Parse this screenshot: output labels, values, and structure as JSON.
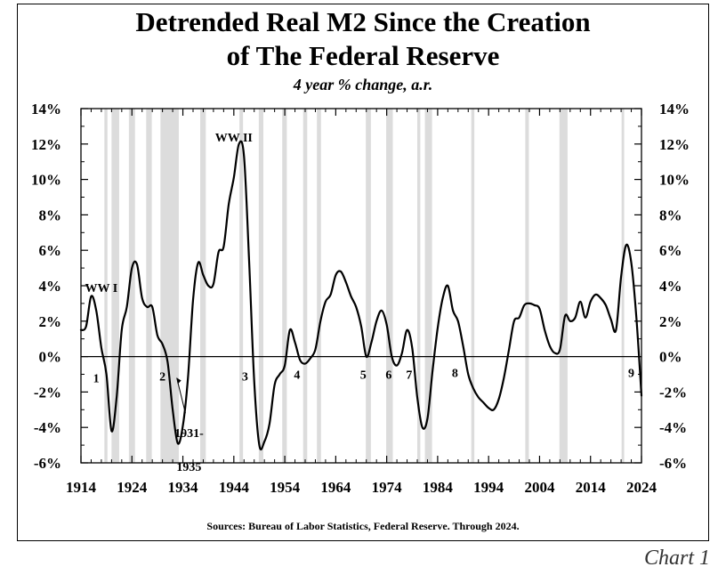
{
  "chart_data": {
    "type": "line",
    "title": "Detrended Real M2 Since the Creation of The Federal Reserve",
    "title_line1": "Detrended Real M2 Since the Creation",
    "title_line2": "of The Federal Reserve",
    "subtitle": "4 year % change, a.r.",
    "source": "Sources: Bureau of Labor Statistics, Federal Reserve.  Through 2024.",
    "caption": "Chart 1",
    "xlim": [
      1914,
      2024
    ],
    "ylim": [
      -6,
      14
    ],
    "x_ticks": [
      1914,
      1924,
      1934,
      1944,
      1954,
      1964,
      1974,
      1984,
      1994,
      2004,
      2014,
      2024
    ],
    "y_ticks": [
      -6,
      -4,
      -2,
      0,
      2,
      4,
      6,
      8,
      10,
      12,
      14
    ],
    "y_tick_labels": [
      "-6%",
      "-4%",
      "-2%",
      "0%",
      "2%",
      "4%",
      "6%",
      "8%",
      "10%",
      "12%",
      "14%"
    ],
    "grid": false,
    "recession_shading": [
      [
        1918.6,
        1919.2
      ],
      [
        1920.0,
        1921.5
      ],
      [
        1923.4,
        1924.6
      ],
      [
        1926.8,
        1927.9
      ],
      [
        1929.6,
        1933.2
      ],
      [
        1937.4,
        1938.5
      ],
      [
        1945.1,
        1945.8
      ],
      [
        1948.9,
        1949.8
      ],
      [
        1953.5,
        1954.4
      ],
      [
        1957.6,
        1958.4
      ],
      [
        1960.3,
        1961.1
      ],
      [
        1969.9,
        1970.9
      ],
      [
        1973.9,
        1975.2
      ],
      [
        1980.0,
        1980.6
      ],
      [
        1981.5,
        1982.9
      ],
      [
        1990.6,
        1991.2
      ],
      [
        2001.2,
        2001.9
      ],
      [
        2007.9,
        2009.5
      ],
      [
        2020.1,
        2020.6
      ]
    ],
    "series": [
      {
        "x": [
          1914,
          1915,
          1916,
          1917,
          1918,
          1919,
          1920,
          1921,
          1922,
          1923,
          1924,
          1925,
          1926,
          1927,
          1928,
          1929,
          1930,
          1931,
          1932,
          1933,
          1934,
          1935,
          1936,
          1937,
          1938,
          1939,
          1940,
          1941,
          1942,
          1943,
          1944,
          1945,
          1946,
          1947,
          1948,
          1949,
          1950,
          1951,
          1952,
          1953,
          1954,
          1955,
          1956,
          1957,
          1958,
          1959,
          1960,
          1961,
          1962,
          1963,
          1964,
          1965,
          1966,
          1967,
          1968,
          1969,
          1970,
          1971,
          1972,
          1973,
          1974,
          1975,
          1976,
          1977,
          1978,
          1979,
          1980,
          1981,
          1982,
          1983,
          1984,
          1985,
          1986,
          1987,
          1988,
          1989,
          1990,
          1991,
          1992,
          1993,
          1994,
          1995,
          1996,
          1997,
          1998,
          1999,
          2000,
          2001,
          2002,
          2003,
          2004,
          2005,
          2006,
          2007,
          2008,
          2009,
          2010,
          2011,
          2012,
          2013,
          2014,
          2015,
          2016,
          2017,
          2018,
          2019,
          2020,
          2021,
          2022,
          2023,
          2024
        ],
        "values": [
          1.5,
          1.7,
          3.4,
          2.6,
          0.5,
          -1.0,
          -4.2,
          -2.3,
          1.5,
          2.8,
          5.0,
          5.2,
          3.3,
          2.8,
          2.8,
          1.2,
          0.7,
          -0.3,
          -3.0,
          -4.9,
          -3.9,
          -1.2,
          3.2,
          5.3,
          4.6,
          4.0,
          4.1,
          5.9,
          6.2,
          8.6,
          10.1,
          12.0,
          11.3,
          5.4,
          -1.4,
          -5.0,
          -4.8,
          -3.8,
          -1.6,
          -1.0,
          -0.5,
          1.5,
          0.8,
          -0.2,
          -0.4,
          -0.1,
          0.4,
          2.0,
          3.1,
          3.5,
          4.6,
          4.8,
          4.2,
          3.4,
          2.8,
          1.7,
          0.0,
          0.8,
          2.0,
          2.6,
          1.8,
          0.0,
          -0.5,
          0.2,
          1.5,
          0.5,
          -2.3,
          -4.0,
          -3.5,
          -0.8,
          1.6,
          3.3,
          4.0,
          2.6,
          2.0,
          0.6,
          -1.0,
          -1.8,
          -2.3,
          -2.6,
          -2.9,
          -3.0,
          -2.4,
          -1.2,
          0.4,
          2.0,
          2.2,
          2.9,
          3.0,
          2.9,
          2.7,
          1.5,
          0.6,
          0.2,
          0.4,
          2.3,
          2.0,
          2.2,
          3.1,
          2.2,
          3.1,
          3.5,
          3.3,
          2.9,
          2.1,
          1.5,
          4.5,
          6.3,
          5.3,
          2.2,
          -2.2
        ]
      }
    ],
    "annotations": {
      "ww1": {
        "text": "WW I",
        "x": 1918.0,
        "y": 3.9
      },
      "ww2": {
        "text": "WW II",
        "x": 1944.0,
        "y": 12.4
      },
      "n1": {
        "text": "1",
        "x": 1917.0,
        "y": -1.2
      },
      "n2": {
        "text": "2",
        "x": 1930.0,
        "y": -1.1
      },
      "n3": {
        "text": "3",
        "x": 1946.2,
        "y": -1.1
      },
      "n4": {
        "text": "4",
        "x": 1956.4,
        "y": -1.0
      },
      "n5": {
        "text": "5",
        "x": 1969.4,
        "y": -1.0
      },
      "n6": {
        "text": "6",
        "x": 1974.4,
        "y": -1.0
      },
      "n7": {
        "text": "7",
        "x": 1978.4,
        "y": -1.0
      },
      "n8": {
        "text": "8",
        "x": 1987.4,
        "y": -0.9
      },
      "n9": {
        "text": "9",
        "x": 2022.0,
        "y": -0.9
      },
      "period_line1": {
        "text": "1931-",
        "x": 1935.2,
        "y": -4.3
      },
      "period_line2": {
        "text": "1935",
        "x": 1935.2,
        "y": -6.2
      }
    }
  }
}
